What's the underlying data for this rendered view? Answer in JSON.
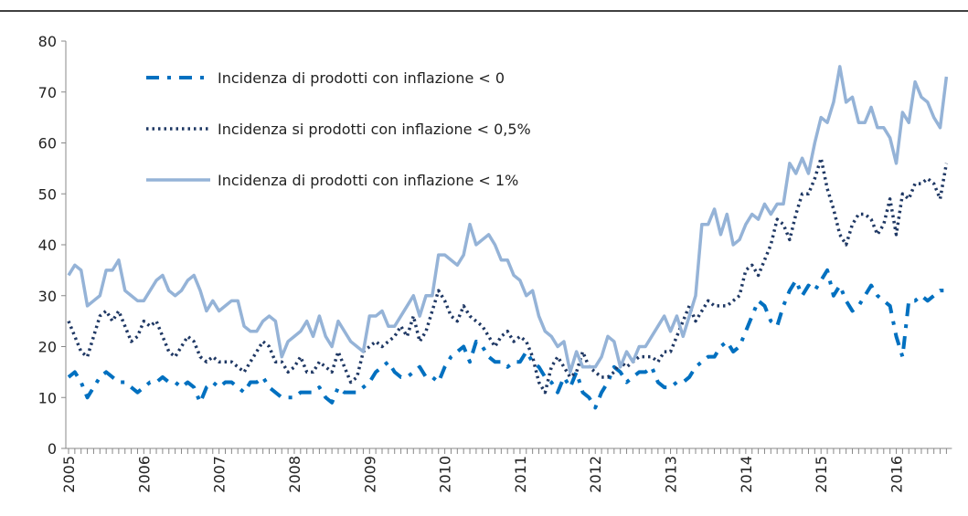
{
  "chart_data": {
    "type": "line",
    "categories": [
      "2005",
      null,
      null,
      null,
      null,
      null,
      null,
      null,
      null,
      null,
      null,
      null,
      "2006",
      null,
      null,
      null,
      null,
      null,
      null,
      null,
      null,
      null,
      null,
      null,
      "2007",
      null,
      null,
      null,
      null,
      null,
      null,
      null,
      null,
      null,
      null,
      null,
      "2008",
      null,
      null,
      null,
      null,
      null,
      null,
      null,
      null,
      null,
      null,
      null,
      "2009",
      null,
      null,
      null,
      null,
      null,
      null,
      null,
      null,
      null,
      null,
      null,
      "2010",
      null,
      null,
      null,
      null,
      null,
      null,
      null,
      null,
      null,
      null,
      null,
      "2011",
      null,
      null,
      null,
      null,
      null,
      null,
      null,
      null,
      null,
      null,
      null,
      "2012",
      null,
      null,
      null,
      null,
      null,
      null,
      null,
      null,
      null,
      null,
      null,
      "2013",
      null,
      null,
      null,
      null,
      null,
      null,
      null,
      null,
      null,
      null,
      null,
      "2014",
      null,
      null,
      null,
      null,
      null,
      null,
      null,
      null,
      null,
      null,
      null,
      "2015",
      null,
      null,
      null,
      null,
      null,
      null,
      null,
      null,
      null,
      null,
      null,
      "2016",
      null,
      null,
      null,
      null,
      null,
      null,
      null,
      null
    ],
    "series": [
      {
        "name": "Incidenza di prodotti con inflazione < 0",
        "color": "#0070c0",
        "style": "dashdot",
        "values": [
          14,
          15,
          13,
          10,
          12,
          14,
          15,
          14,
          13,
          13,
          12,
          11,
          12,
          13,
          13,
          14,
          13,
          13,
          12,
          13,
          12,
          9,
          12,
          13,
          12,
          13,
          13,
          12,
          11,
          13,
          13,
          14,
          12,
          11,
          10,
          10,
          10,
          11,
          11,
          11,
          12,
          10,
          9,
          12,
          11,
          11,
          11,
          12,
          13,
          15,
          16,
          17,
          15,
          14,
          14,
          15,
          16,
          14,
          14,
          13,
          16,
          18,
          19,
          20,
          17,
          21,
          20,
          18,
          17,
          17,
          16,
          17,
          17,
          19,
          17,
          16,
          14,
          13,
          11,
          14,
          12,
          15,
          11,
          10,
          8,
          11,
          13,
          16,
          15,
          13,
          14,
          15,
          15,
          16,
          13,
          12,
          12,
          13,
          13,
          14,
          16,
          17,
          18,
          18,
          20,
          21,
          19,
          20,
          23,
          26,
          29,
          28,
          25,
          24,
          28,
          31,
          33,
          30,
          32,
          31,
          33,
          35,
          30,
          32,
          29,
          27,
          28,
          30,
          32,
          30,
          29,
          28,
          22,
          18,
          29,
          29,
          30,
          29,
          30,
          31,
          31
        ]
      },
      {
        "name": "Incidenza si prodotti con inflazione < 0,5%",
        "color": "#1f3864",
        "style": "dotted",
        "values": [
          25,
          22,
          19,
          18,
          22,
          26,
          27,
          25,
          27,
          24,
          21,
          22,
          25,
          24,
          25,
          22,
          19,
          18,
          20,
          22,
          21,
          18,
          17,
          18,
          17,
          17,
          17,
          16,
          15,
          17,
          19,
          21,
          20,
          17,
          17,
          15,
          16,
          18,
          15,
          15,
          17,
          16,
          15,
          19,
          16,
          13,
          14,
          19,
          20,
          21,
          20,
          21,
          22,
          24,
          22,
          26,
          21,
          23,
          27,
          31,
          29,
          26,
          25,
          28,
          26,
          25,
          24,
          22,
          20,
          22,
          23,
          21,
          22,
          21,
          18,
          13,
          11,
          16,
          18,
          16,
          14,
          15,
          19,
          16,
          15,
          14,
          14,
          15,
          17,
          16,
          17,
          18,
          18,
          18,
          17,
          19,
          19,
          22,
          25,
          28,
          25,
          27,
          29,
          28,
          28,
          28,
          29,
          30,
          35,
          36,
          34,
          37,
          40,
          45,
          44,
          41,
          46,
          50,
          50,
          53,
          57,
          51,
          47,
          42,
          40,
          44,
          46,
          46,
          45,
          42,
          44,
          49,
          42,
          50,
          49,
          52,
          52,
          53,
          52,
          49,
          56
        ]
      },
      {
        "name": "Incidenza di prodotti con inflazione < 1%",
        "color": "#95b3d7",
        "style": "solid",
        "values": [
          34,
          36,
          35,
          28,
          29,
          30,
          35,
          35,
          37,
          31,
          30,
          29,
          29,
          31,
          33,
          34,
          31,
          30,
          31,
          33,
          34,
          31,
          27,
          29,
          27,
          28,
          29,
          29,
          24,
          23,
          23,
          25,
          26,
          25,
          18,
          21,
          22,
          23,
          25,
          22,
          26,
          22,
          20,
          25,
          23,
          21,
          20,
          19,
          26,
          26,
          27,
          24,
          24,
          26,
          28,
          30,
          26,
          30,
          30,
          38,
          38,
          37,
          36,
          38,
          44,
          40,
          41,
          42,
          40,
          37,
          37,
          34,
          33,
          30,
          31,
          26,
          23,
          22,
          20,
          21,
          15,
          19,
          16,
          16,
          16,
          18,
          22,
          21,
          16,
          19,
          17,
          20,
          20,
          22,
          24,
          26,
          23,
          26,
          22,
          26,
          30,
          44,
          44,
          47,
          42,
          46,
          40,
          41,
          44,
          46,
          45,
          48,
          46,
          48,
          48,
          56,
          54,
          57,
          54,
          60,
          65,
          64,
          68,
          75,
          68,
          69,
          64,
          64,
          67,
          63,
          63,
          61,
          56,
          66,
          64,
          72,
          69,
          68,
          65,
          63,
          73
        ]
      }
    ],
    "ylim": [
      0,
      80
    ],
    "yticks": [
      0,
      10,
      20,
      30,
      40,
      50,
      60,
      70,
      80
    ],
    "grid": false,
    "legend": "upper left"
  }
}
